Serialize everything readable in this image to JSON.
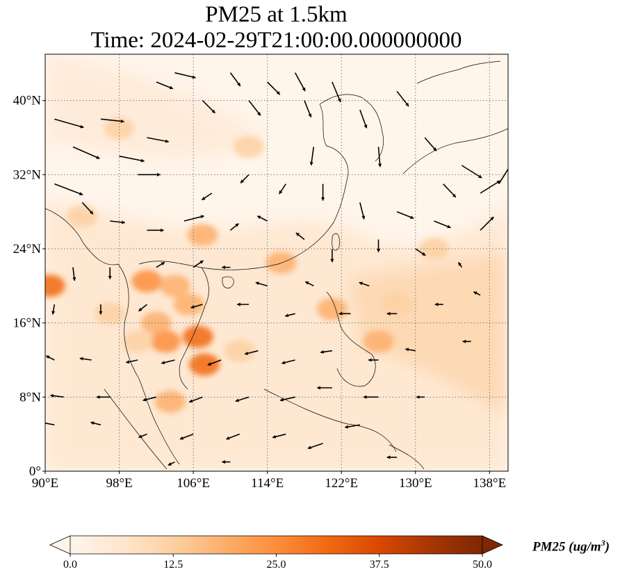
{
  "title_line1": "PM25 at 1.5km",
  "title_line2": "Time: 2024-02-29T21:00:00.000000000",
  "map": {
    "lon_range": [
      90,
      140
    ],
    "lat_range": [
      0,
      45
    ],
    "lon_ticks": [
      {
        "value": 90,
        "label": "90°E"
      },
      {
        "value": 98,
        "label": "98°E"
      },
      {
        "value": 106,
        "label": "106°E"
      },
      {
        "value": 114,
        "label": "114°E"
      },
      {
        "value": 122,
        "label": "122°E"
      },
      {
        "value": 130,
        "label": "130°E"
      },
      {
        "value": 138,
        "label": "138°E"
      }
    ],
    "lat_ticks": [
      {
        "value": 0,
        "label": "0°"
      },
      {
        "value": 8,
        "label": "8°N"
      },
      {
        "value": 16,
        "label": "16°N"
      },
      {
        "value": 24,
        "label": "24°N"
      },
      {
        "value": 32,
        "label": "32°N"
      },
      {
        "value": 40,
        "label": "40°N"
      }
    ],
    "gridlines": "dotted",
    "pollution_hotspots": [
      {
        "lon": 90.5,
        "lat": 20,
        "value": 30
      },
      {
        "lon": 106.5,
        "lat": 14.5,
        "value": 32
      },
      {
        "lon": 107.2,
        "lat": 11.5,
        "value": 30
      },
      {
        "lon": 103,
        "lat": 14,
        "value": 24
      },
      {
        "lon": 101,
        "lat": 20.5,
        "value": 22
      },
      {
        "lon": 104,
        "lat": 20,
        "value": 18
      },
      {
        "lon": 105.5,
        "lat": 18,
        "value": 20
      },
      {
        "lon": 102,
        "lat": 16,
        "value": 18
      },
      {
        "lon": 107,
        "lat": 25.5,
        "value": 18
      },
      {
        "lon": 115.5,
        "lat": 22.5,
        "value": 16
      },
      {
        "lon": 121,
        "lat": 17.5,
        "value": 18
      },
      {
        "lon": 126,
        "lat": 14,
        "value": 16
      },
      {
        "lon": 103.5,
        "lat": 7.5,
        "value": 18
      },
      {
        "lon": 100,
        "lat": 14,
        "value": 14
      },
      {
        "lon": 97,
        "lat": 17,
        "value": 14
      },
      {
        "lon": 111,
        "lat": 13,
        "value": 14
      },
      {
        "lon": 94,
        "lat": 27.5,
        "value": 14
      },
      {
        "lon": 112,
        "lat": 35,
        "value": 12
      },
      {
        "lon": 98,
        "lat": 37,
        "value": 10
      },
      {
        "lon": 132,
        "lat": 24,
        "value": 12
      },
      {
        "lon": 128,
        "lat": 18,
        "value": 12
      }
    ],
    "wind_vectors": [
      {
        "lon": 91,
        "lat": 38,
        "u": 3.5,
        "v": -1.0
      },
      {
        "lon": 93,
        "lat": 35,
        "u": 3.2,
        "v": -1.4
      },
      {
        "lon": 91,
        "lat": 31,
        "u": 3.4,
        "v": -1.3
      },
      {
        "lon": 94,
        "lat": 29,
        "u": 1.3,
        "v": -1.4
      },
      {
        "lon": 96,
        "lat": 38,
        "u": 2.8,
        "v": -0.3
      },
      {
        "lon": 98,
        "lat": 34,
        "u": 3.0,
        "v": -0.6
      },
      {
        "lon": 100,
        "lat": 32,
        "u": 2.7,
        "v": 0.0
      },
      {
        "lon": 101,
        "lat": 36,
        "u": 2.6,
        "v": -0.5
      },
      {
        "lon": 102,
        "lat": 42,
        "u": 2.0,
        "v": -0.8
      },
      {
        "lon": 104,
        "lat": 43,
        "u": 2.5,
        "v": -0.6
      },
      {
        "lon": 107,
        "lat": 40,
        "u": 1.5,
        "v": -1.5
      },
      {
        "lon": 110,
        "lat": 43,
        "u": 1.2,
        "v": -1.6
      },
      {
        "lon": 112,
        "lat": 40,
        "u": 1.4,
        "v": -1.8
      },
      {
        "lon": 114,
        "lat": 42,
        "u": 1.5,
        "v": -1.5
      },
      {
        "lon": 117,
        "lat": 43,
        "u": 1.2,
        "v": -2.2
      },
      {
        "lon": 118,
        "lat": 40,
        "u": 0.8,
        "v": -2.0
      },
      {
        "lon": 119,
        "lat": 35,
        "u": -0.3,
        "v": -2.2
      },
      {
        "lon": 121,
        "lat": 42,
        "u": 1.0,
        "v": -2.4
      },
      {
        "lon": 124,
        "lat": 39,
        "u": 0.8,
        "v": -2.2
      },
      {
        "lon": 126,
        "lat": 35,
        "u": 0.2,
        "v": -2.4
      },
      {
        "lon": 128,
        "lat": 41,
        "u": 1.4,
        "v": -1.8
      },
      {
        "lon": 131,
        "lat": 36,
        "u": 1.4,
        "v": -1.6
      },
      {
        "lon": 133,
        "lat": 31,
        "u": 1.5,
        "v": -1.6
      },
      {
        "lon": 135,
        "lat": 33,
        "u": 2.4,
        "v": -1.5
      },
      {
        "lon": 137,
        "lat": 30,
        "u": 2.4,
        "v": 1.5
      },
      {
        "lon": 139,
        "lat": 31,
        "u": 1.5,
        "v": 2.4
      },
      {
        "lon": 137,
        "lat": 26,
        "u": 1.6,
        "v": 1.6
      },
      {
        "lon": 132,
        "lat": 27,
        "u": 2.0,
        "v": -0.8
      },
      {
        "lon": 128,
        "lat": 28,
        "u": 2.0,
        "v": -0.8
      },
      {
        "lon": 124,
        "lat": 29,
        "u": 0.5,
        "v": -2.0
      },
      {
        "lon": 120,
        "lat": 31,
        "u": 0.0,
        "v": -2.0
      },
      {
        "lon": 116,
        "lat": 31,
        "u": -0.8,
        "v": -1.2
      },
      {
        "lon": 112,
        "lat": 32,
        "u": -1.0,
        "v": -1.0
      },
      {
        "lon": 108,
        "lat": 30,
        "u": -1.2,
        "v": -0.8
      },
      {
        "lon": 105,
        "lat": 27,
        "u": 2.4,
        "v": 0.6
      },
      {
        "lon": 101,
        "lat": 26,
        "u": 2.0,
        "v": 0.0
      },
      {
        "lon": 97,
        "lat": 27,
        "u": 1.8,
        "v": -0.2
      },
      {
        "lon": 110,
        "lat": 26,
        "u": 1.0,
        "v": 0.8
      },
      {
        "lon": 114,
        "lat": 27,
        "u": -1.2,
        "v": 0.6
      },
      {
        "lon": 118,
        "lat": 25,
        "u": -1.0,
        "v": 0.8
      },
      {
        "lon": 121,
        "lat": 24,
        "u": 0.0,
        "v": -1.6
      },
      {
        "lon": 126,
        "lat": 25,
        "u": 0.0,
        "v": -1.5
      },
      {
        "lon": 130,
        "lat": 24,
        "u": 1.2,
        "v": -0.8
      },
      {
        "lon": 135,
        "lat": 22,
        "u": -0.4,
        "v": 0.6
      },
      {
        "lon": 125,
        "lat": 20,
        "u": -1.2,
        "v": 0.4
      },
      {
        "lon": 119,
        "lat": 20,
        "u": -1.0,
        "v": 0.5
      },
      {
        "lon": 114,
        "lat": 20,
        "u": -1.4,
        "v": 0.4
      },
      {
        "lon": 110,
        "lat": 22,
        "u": -1.0,
        "v": 0.0
      },
      {
        "lon": 106,
        "lat": 22,
        "u": 1.2,
        "v": 0.8
      },
      {
        "lon": 102,
        "lat": 22,
        "u": 1.0,
        "v": 0.6
      },
      {
        "lon": 97,
        "lat": 22,
        "u": 0.0,
        "v": -1.4
      },
      {
        "lon": 93,
        "lat": 22,
        "u": 0.2,
        "v": -1.6
      },
      {
        "lon": 91,
        "lat": 18,
        "u": -0.2,
        "v": -1.2
      },
      {
        "lon": 96,
        "lat": 18,
        "u": 0.0,
        "v": -1.2
      },
      {
        "lon": 101,
        "lat": 18,
        "u": -1.0,
        "v": -0.8
      },
      {
        "lon": 107,
        "lat": 18,
        "u": -1.4,
        "v": -0.4
      },
      {
        "lon": 112,
        "lat": 18,
        "u": -1.4,
        "v": 0.0
      },
      {
        "lon": 117,
        "lat": 17,
        "u": -1.2,
        "v": -0.3
      },
      {
        "lon": 123,
        "lat": 17,
        "u": -1.4,
        "v": 0.0
      },
      {
        "lon": 128,
        "lat": 17,
        "u": -1.2,
        "v": 0.0
      },
      {
        "lon": 133,
        "lat": 18,
        "u": -1.0,
        "v": 0.0
      },
      {
        "lon": 137,
        "lat": 19,
        "u": -0.8,
        "v": 0.4
      },
      {
        "lon": 136,
        "lat": 14,
        "u": -1.0,
        "v": 0.0
      },
      {
        "lon": 130,
        "lat": 13,
        "u": -1.2,
        "v": 0.2
      },
      {
        "lon": 126,
        "lat": 12,
        "u": -1.2,
        "v": 0.0
      },
      {
        "lon": 121,
        "lat": 13,
        "u": -1.4,
        "v": -0.2
      },
      {
        "lon": 117,
        "lat": 12,
        "u": -1.6,
        "v": -0.4
      },
      {
        "lon": 113,
        "lat": 13,
        "u": -1.6,
        "v": -0.4
      },
      {
        "lon": 109,
        "lat": 12,
        "u": -1.6,
        "v": -0.6
      },
      {
        "lon": 104,
        "lat": 12,
        "u": -1.6,
        "v": -0.4
      },
      {
        "lon": 100,
        "lat": 12,
        "u": -1.4,
        "v": -0.3
      },
      {
        "lon": 95,
        "lat": 12,
        "u": -1.4,
        "v": 0.2
      },
      {
        "lon": 91,
        "lat": 12,
        "u": -1.0,
        "v": 0.5
      },
      {
        "lon": 92,
        "lat": 8,
        "u": -1.6,
        "v": 0.2
      },
      {
        "lon": 97,
        "lat": 8,
        "u": -1.6,
        "v": 0.0
      },
      {
        "lon": 102,
        "lat": 8,
        "u": -1.6,
        "v": -0.4
      },
      {
        "lon": 107,
        "lat": 8,
        "u": -1.6,
        "v": -0.6
      },
      {
        "lon": 112,
        "lat": 8,
        "u": -1.6,
        "v": -0.5
      },
      {
        "lon": 117,
        "lat": 8,
        "u": -1.8,
        "v": -0.4
      },
      {
        "lon": 121,
        "lat": 9,
        "u": -1.8,
        "v": 0.0
      },
      {
        "lon": 126,
        "lat": 8,
        "u": -1.8,
        "v": 0.0
      },
      {
        "lon": 131,
        "lat": 8,
        "u": -1.0,
        "v": 0.0
      },
      {
        "lon": 91,
        "lat": 5,
        "u": -1.6,
        "v": 0.3
      },
      {
        "lon": 96,
        "lat": 5,
        "u": -1.2,
        "v": 0.3
      },
      {
        "lon": 101,
        "lat": 4,
        "u": -1.0,
        "v": -0.4
      },
      {
        "lon": 106,
        "lat": 4,
        "u": -1.6,
        "v": -0.6
      },
      {
        "lon": 111,
        "lat": 4,
        "u": -1.6,
        "v": -0.6
      },
      {
        "lon": 116,
        "lat": 4,
        "u": -1.6,
        "v": -0.4
      },
      {
        "lon": 120,
        "lat": 3,
        "u": -1.8,
        "v": -0.6
      },
      {
        "lon": 124,
        "lat": 5,
        "u": -1.8,
        "v": -0.3
      },
      {
        "lon": 128,
        "lat": 1.5,
        "u": -1.2,
        "v": 0.0
      },
      {
        "lon": 104,
        "lat": 1,
        "u": -0.8,
        "v": -0.4
      },
      {
        "lon": 110,
        "lat": 1,
        "u": -1.0,
        "v": 0.0
      }
    ]
  },
  "colorbar": {
    "title": "PM25 (ug/m",
    "title_superscript": "3",
    "title_close": ")",
    "min": 0,
    "max": 50,
    "ticks": [
      {
        "value": 0,
        "label": "0.0"
      },
      {
        "value": 12.5,
        "label": "12.5"
      },
      {
        "value": 25,
        "label": "25.0"
      },
      {
        "value": 37.5,
        "label": "37.5"
      },
      {
        "value": 50,
        "label": "50.0"
      }
    ],
    "colormap": [
      "#fff5eb",
      "#fee6ce",
      "#fdd0a2",
      "#fdae6b",
      "#fd8d3c",
      "#f16913",
      "#d94801",
      "#a63603",
      "#7f2704"
    ],
    "extend": "both"
  }
}
